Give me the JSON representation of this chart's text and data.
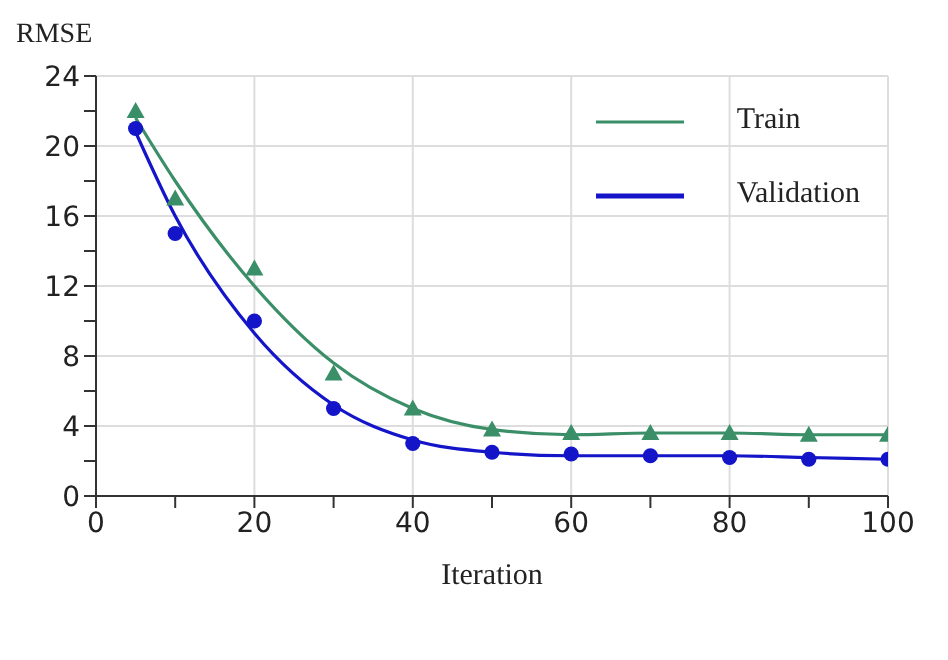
{
  "chart_data": {
    "type": "line",
    "xlabel": "Iteration",
    "ylabel": "RMSE",
    "xlim": [
      0,
      100
    ],
    "ylim": [
      0,
      24
    ],
    "xticks": [
      0,
      {
        "value": 10,
        "label": null
      },
      20,
      {
        "value": 30,
        "label": null
      },
      40,
      {
        "value": 50,
        "label": null
      },
      60,
      {
        "value": 70,
        "label": null
      },
      80,
      {
        "value": 90,
        "label": null
      },
      100
    ],
    "yticks": [
      0,
      {
        "value": 2,
        "label": null
      },
      4,
      {
        "value": 6,
        "label": null
      },
      8,
      {
        "value": 10,
        "label": null
      },
      12,
      {
        "value": 14,
        "label": null
      },
      16,
      {
        "value": 18,
        "label": null
      },
      20,
      {
        "value": 22,
        "label": null
      },
      24
    ],
    "grid": true,
    "legend": "top right",
    "line_style": "solid",
    "series": [
      {
        "type": "scatter",
        "marker": "triangle",
        "color": "#3b8f68",
        "x": [
          5,
          10,
          20,
          30,
          40,
          50,
          60,
          70,
          80,
          90,
          100
        ],
        "values": [
          22,
          17,
          13,
          7,
          5,
          3.8,
          3.6,
          3.6,
          3.6,
          3.5,
          3.5
        ]
      },
      {
        "type": "scatter",
        "marker": "circle",
        "color": "#1414c8",
        "x": [
          5,
          10,
          20,
          30,
          40,
          50,
          60,
          70,
          80,
          90,
          100
        ],
        "values": [
          21,
          15,
          10,
          5,
          3,
          2.5,
          2.4,
          2.3,
          2.2,
          2.1,
          2.1
        ]
      },
      {
        "name": "Train",
        "marker": "none",
        "color": "#3b8f68",
        "x": [
          5,
          10,
          20,
          30,
          40,
          50,
          60,
          70,
          80,
          90,
          100
        ],
        "values": [
          21.6,
          18,
          12,
          7.6,
          5,
          3.8,
          3.5,
          3.6,
          3.6,
          3.5,
          3.5
        ]
      },
      {
        "name": "Validation",
        "marker": "none",
        "color": "#1414c8",
        "x": [
          5,
          10,
          20,
          30,
          40,
          50,
          60,
          70,
          80,
          90,
          100
        ],
        "values": [
          20.8,
          16,
          9.3,
          5.2,
          3.2,
          2.5,
          2.3,
          2.3,
          2.3,
          2.2,
          2.1
        ]
      }
    ]
  }
}
